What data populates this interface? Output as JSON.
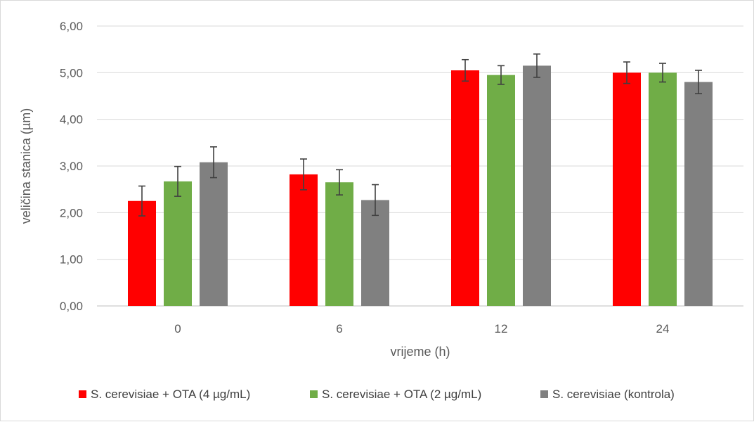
{
  "chart_data": {
    "type": "bar",
    "title": "",
    "xlabel": "vrijeme (h)",
    "ylabel": "veličina stanica (µm)",
    "categories": [
      "0",
      "6",
      "12",
      "24"
    ],
    "ylim": [
      0,
      6
    ],
    "yticks": [
      "0,00",
      "1,00",
      "2,00",
      "3,00",
      "4,00",
      "5,00",
      "6,00"
    ],
    "grid": true,
    "legend_position": "bottom",
    "series": [
      {
        "name": "S. cerevisiae + OTA (4 µg/mL)",
        "color": "#ff0000",
        "values": [
          2.25,
          2.82,
          5.05,
          5.0
        ],
        "errors": [
          0.32,
          0.33,
          0.23,
          0.23
        ]
      },
      {
        "name": "S. cerevisiae + OTA (2 µg/mL)",
        "color": "#70ad47",
        "values": [
          2.67,
          2.65,
          4.95,
          5.0
        ],
        "errors": [
          0.32,
          0.27,
          0.2,
          0.2
        ]
      },
      {
        "name": "S. cerevisiae (kontrola)",
        "color": "#808080",
        "values": [
          3.08,
          2.27,
          5.15,
          4.8
        ],
        "errors": [
          0.33,
          0.33,
          0.25,
          0.25
        ]
      }
    ]
  }
}
